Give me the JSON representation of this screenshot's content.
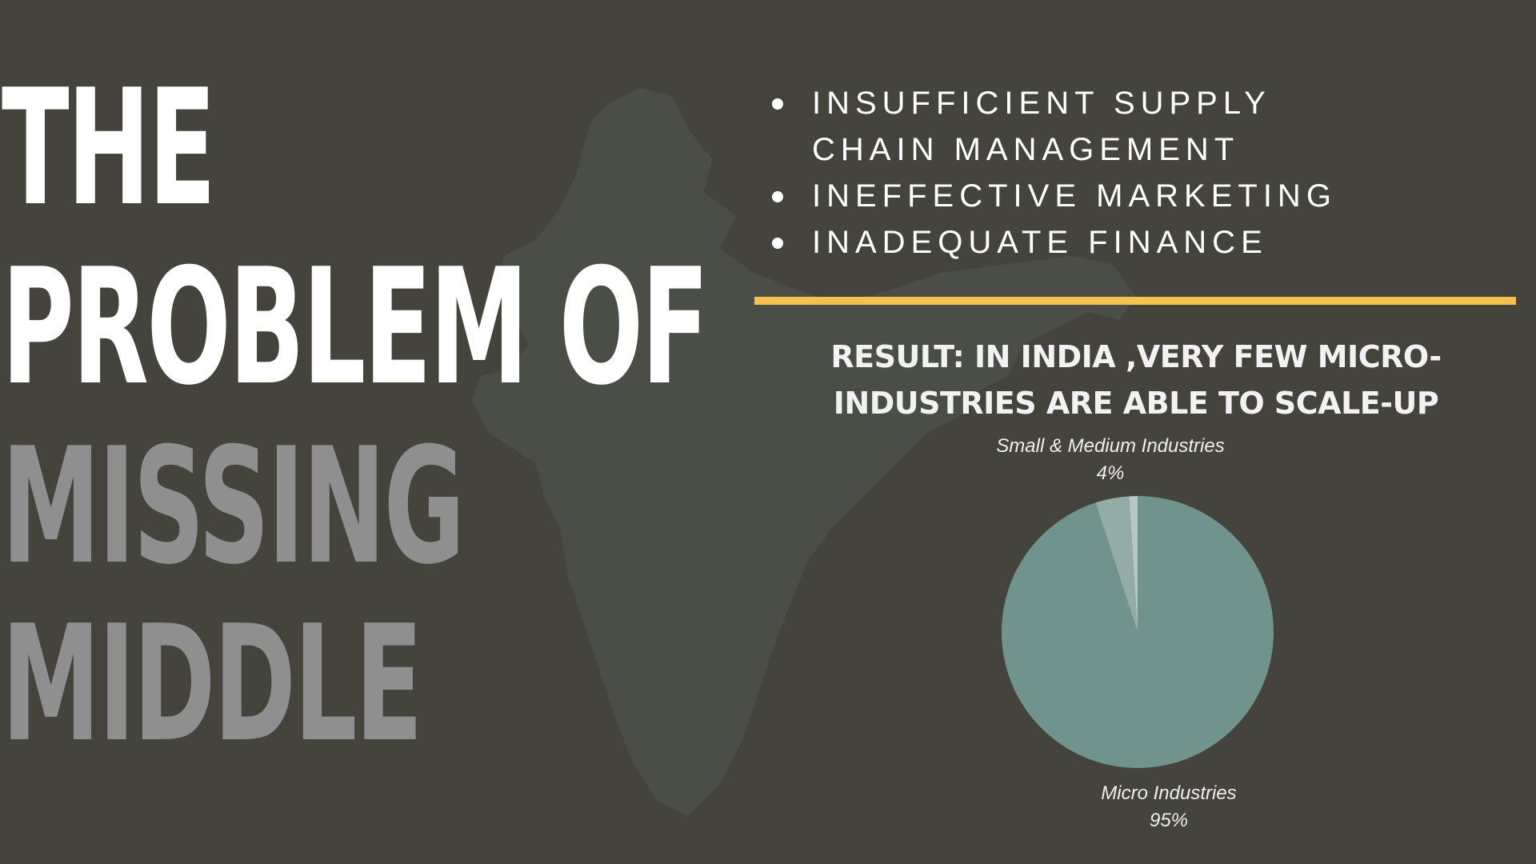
{
  "title": {
    "line1": "THE",
    "line2": "PROBLEM OF",
    "line3": "MISSING",
    "line4": "MIDDLE"
  },
  "bullets": [
    {
      "text": "INSUFFICIENT SUPPLY CHAIN MANAGEMENT"
    },
    {
      "text": "INEFFECTIVE MARKETING"
    },
    {
      "text": "INADEQUATE FINANCE"
    }
  ],
  "result": "RESULT: IN INDIA ,VERY FEW MICRO-INDUSTRIES ARE ABLE TO SCALE-UP",
  "colors": {
    "background": "#44443c",
    "accent_divider": "#f2c14e",
    "map": "#4b4e46",
    "pie_micro": "#70948d",
    "pie_sme": "#93aca7",
    "pie_large": "#b6c7c4"
  },
  "chart_data": {
    "type": "pie",
    "slices": [
      {
        "label": "Micro Industries",
        "value": 95,
        "value_label": "95%"
      },
      {
        "label": "Small & Medium Industries",
        "value": 4,
        "value_label": "4%"
      },
      {
        "label": "",
        "value": 1,
        "value_label": ""
      }
    ],
    "start": "top",
    "direction": "clockwise"
  }
}
